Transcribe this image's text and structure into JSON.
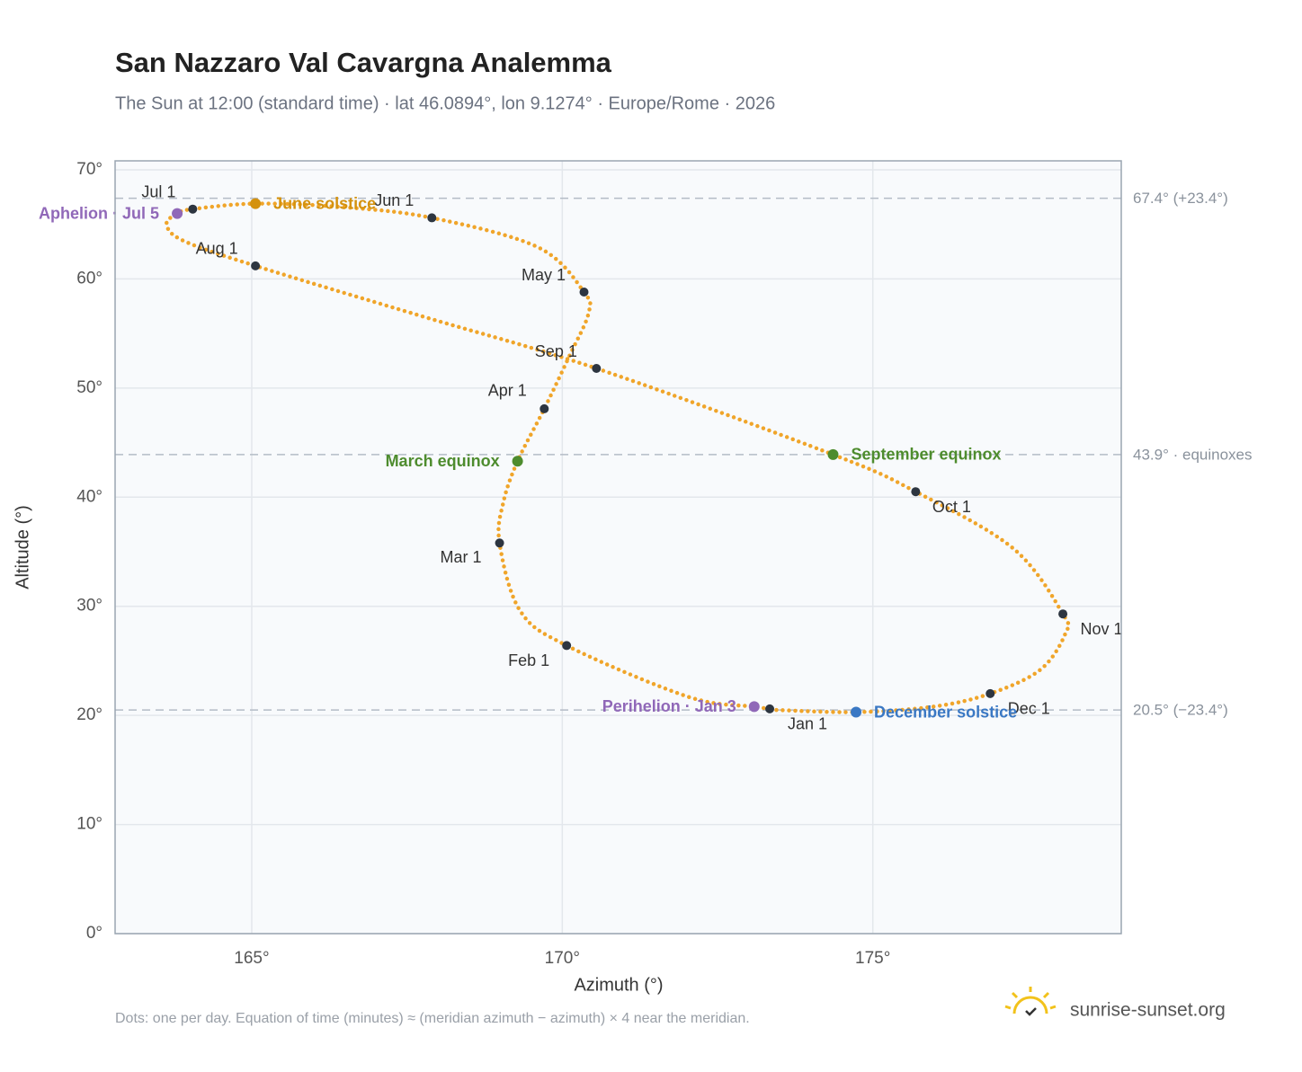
{
  "chart_data": {
    "type": "line",
    "title": "San Nazzaro Val Cavargna Analemma",
    "subtitle": "The Sun at 12:00 (standard time) · lat 46.0894°, lon 9.1274° · Europe/Rome · 2026",
    "x_label": "Azimuth (°)",
    "y_label": "Altitude (°)",
    "xlim": [
      162.8,
      179.0
    ],
    "ylim": [
      0,
      70
    ],
    "xticks": [
      {
        "value": 165,
        "label": "165°"
      },
      {
        "value": 170,
        "label": "170°"
      },
      {
        "value": 175,
        "label": "175°"
      }
    ],
    "yticks": [
      {
        "value": 0,
        "label": "0°"
      },
      {
        "value": 10,
        "label": "10°"
      },
      {
        "value": 20,
        "label": "20°"
      },
      {
        "value": 30,
        "label": "30°"
      },
      {
        "value": 40,
        "label": "40°"
      },
      {
        "value": 50,
        "label": "50°"
      },
      {
        "value": 60,
        "label": "60°"
      },
      {
        "value": 70,
        "label": "70°"
      }
    ],
    "grid": true,
    "series": [
      {
        "color": "#f0a52a",
        "x": [
          173.34,
          173.09,
          172.03,
          170.07,
          169.32,
          168.99,
          169.05,
          169.28,
          169.71,
          170.12,
          170.42,
          170.35,
          169.61,
          167.9,
          166.43,
          165.06,
          164.05,
          163.8,
          163.63,
          163.9,
          165.06,
          167.73,
          170.55,
          174.36,
          175.69,
          177.26,
          178.06,
          178.1,
          177.7,
          176.89,
          175.97,
          174.73,
          173.43
        ],
        "values": [
          20.6,
          20.8,
          21.7,
          26.4,
          29.6,
          35.8,
          39.5,
          43.3,
          48.1,
          53.0,
          56.8,
          58.8,
          62.9,
          65.6,
          66.6,
          66.9,
          66.4,
          66.0,
          65.0,
          63.5,
          61.2,
          56.6,
          51.8,
          43.9,
          40.5,
          35.3,
          29.3,
          27.5,
          24.2,
          22.0,
          20.8,
          20.3,
          20.5
        ]
      }
    ],
    "month_markers": {
      "color": "#2d3540",
      "labels": [
        "Jan 1",
        "Feb 1",
        "Mar 1",
        "Apr 1",
        "May 1",
        "Jun 1",
        "Jul 1",
        "Aug 1",
        "Sep 1",
        "Oct 1",
        "Nov 1",
        "Dec 1"
      ],
      "x": [
        173.34,
        170.07,
        168.99,
        169.71,
        170.35,
        167.9,
        164.05,
        165.06,
        170.55,
        175.69,
        178.06,
        176.89
      ],
      "values": [
        20.6,
        26.4,
        35.8,
        48.1,
        58.8,
        65.6,
        66.4,
        61.2,
        51.8,
        40.5,
        29.3,
        22.0
      ]
    },
    "events": [
      {
        "name": "Perihelion · Jan 3",
        "color": "#9068b8",
        "x": 173.09,
        "value": 20.8
      },
      {
        "name": "March equinox",
        "color": "#4e8c2e",
        "x": 169.28,
        "value": 43.3
      },
      {
        "name": "June solstice",
        "color": "#d4920e",
        "x": 165.06,
        "value": 66.9
      },
      {
        "name": "Aphelion · Jul 5",
        "color": "#9068b8",
        "x": 163.8,
        "value": 66.0
      },
      {
        "name": "September equinox",
        "color": "#4e8c2e",
        "x": 174.36,
        "value": 43.9
      },
      {
        "name": "December solstice",
        "color": "#3a78c4",
        "x": 174.73,
        "value": 20.3
      }
    ],
    "reference_lines": [
      {
        "value": 67.4,
        "label": "67.4° (+23.4°)"
      },
      {
        "value": 43.9,
        "label": "43.9° · equinoxes"
      },
      {
        "value": 20.5,
        "label": "20.5° (−23.4°)"
      }
    ],
    "note": "Dots: one per day. Equation of time (minutes) ≈ (meridian azimuth − azimuth) × 4 near the meridian.",
    "brand": "sunrise-sunset.org"
  }
}
